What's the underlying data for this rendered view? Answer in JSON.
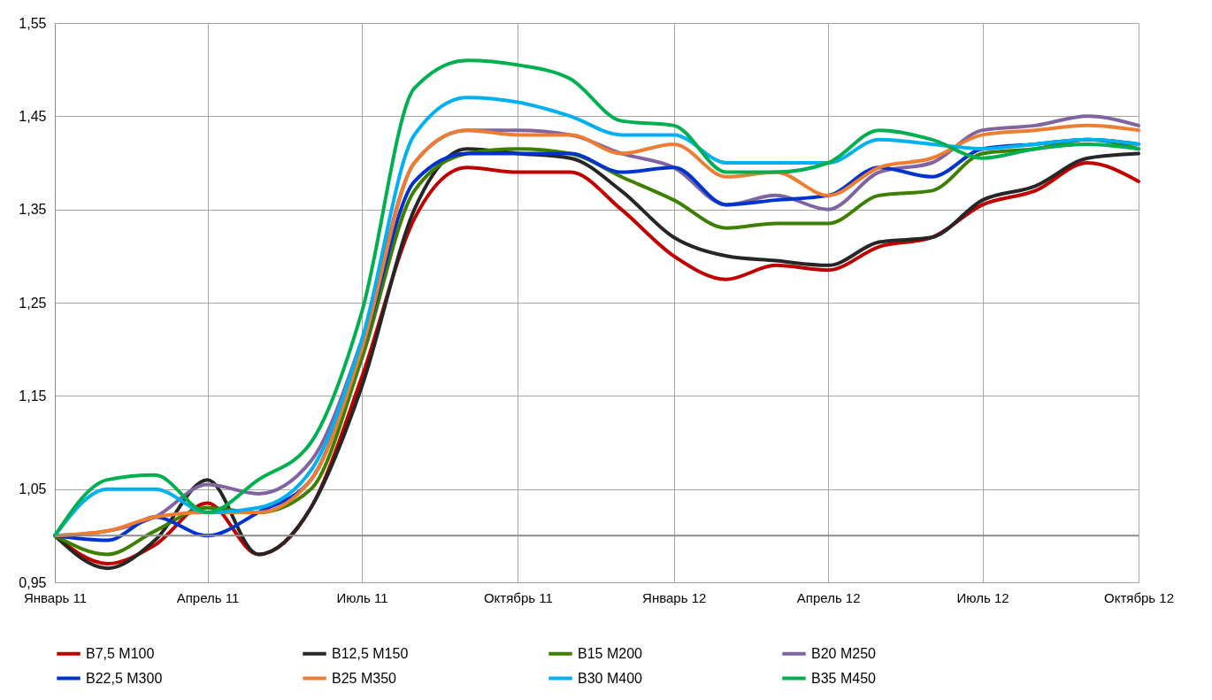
{
  "chart_data": {
    "type": "line",
    "x": [
      "2011-01",
      "2011-02",
      "2011-03",
      "2011-04",
      "2011-05",
      "2011-06",
      "2011-07",
      "2011-08",
      "2011-09",
      "2011-10",
      "2011-11",
      "2011-12",
      "2012-01",
      "2012-02",
      "2012-03",
      "2012-04",
      "2012-05",
      "2012-06",
      "2012-07",
      "2012-08",
      "2012-09",
      "2012-10"
    ],
    "xlim": [
      "2011-01",
      "2012-10"
    ],
    "xticks": [
      {
        "value": "2011-01",
        "label": "Январь 11"
      },
      {
        "value": "2011-04",
        "label": "Апрель 11"
      },
      {
        "value": "2011-07",
        "label": "Июль 11"
      },
      {
        "value": "2011-10",
        "label": "Октябрь 11"
      },
      {
        "value": "2012-01",
        "label": "Январь 12"
      },
      {
        "value": "2012-04",
        "label": "Апрель 12"
      },
      {
        "value": "2012-07",
        "label": "Июль 12"
      },
      {
        "value": "2012-10",
        "label": "Октябрь 12"
      }
    ],
    "ylim": [
      0.95,
      1.55
    ],
    "yticks": [
      {
        "value": 0.95,
        "label": "0,95"
      },
      {
        "value": 1.05,
        "label": "1,05"
      },
      {
        "value": 1.15,
        "label": "1,15"
      },
      {
        "value": 1.25,
        "label": "1,25"
      },
      {
        "value": 1.35,
        "label": "1,35"
      },
      {
        "value": 1.45,
        "label": "1,45"
      },
      {
        "value": 1.55,
        "label": "1,55"
      }
    ],
    "grid": true,
    "legend": "bottom",
    "ref_lines": [
      {
        "axis": "y",
        "value": 1.0,
        "color": "#8c8c8c"
      }
    ],
    "series": [
      {
        "name": "B7,5 M100",
        "color": "#c00000",
        "values": [
          1.0,
          0.97,
          0.99,
          1.035,
          0.98,
          1.03,
          1.17,
          1.34,
          1.395,
          1.39,
          1.39,
          1.35,
          1.3,
          1.275,
          1.29,
          1.285,
          1.31,
          1.32,
          1.355,
          1.37,
          1.4,
          1.38
        ]
      },
      {
        "name": "B12,5 M150",
        "color": "#262626",
        "values": [
          1.0,
          0.965,
          0.995,
          1.06,
          0.98,
          1.03,
          1.16,
          1.35,
          1.415,
          1.41,
          1.405,
          1.37,
          1.32,
          1.3,
          1.295,
          1.29,
          1.315,
          1.32,
          1.36,
          1.375,
          1.405,
          1.41
        ]
      },
      {
        "name": "B15 M200",
        "color": "#3f7f00",
        "values": [
          1.0,
          0.98,
          1.005,
          1.03,
          1.025,
          1.05,
          1.19,
          1.37,
          1.41,
          1.415,
          1.41,
          1.385,
          1.36,
          1.33,
          1.335,
          1.335,
          1.365,
          1.37,
          1.41,
          1.415,
          1.425,
          1.415
        ]
      },
      {
        "name": "B20 M250",
        "color": "#8064a2",
        "values": [
          1.0,
          1.005,
          1.02,
          1.055,
          1.045,
          1.08,
          1.21,
          1.4,
          1.435,
          1.435,
          1.43,
          1.41,
          1.395,
          1.355,
          1.365,
          1.35,
          1.39,
          1.4,
          1.435,
          1.44,
          1.45,
          1.44
        ]
      },
      {
        "name": "B22,5 M300",
        "color": "#0033cc",
        "values": [
          1.0,
          0.995,
          1.02,
          1.0,
          1.025,
          1.06,
          1.2,
          1.38,
          1.41,
          1.41,
          1.41,
          1.39,
          1.395,
          1.355,
          1.36,
          1.365,
          1.395,
          1.385,
          1.415,
          1.42,
          1.425,
          1.42
        ]
      },
      {
        "name": "B25 M350",
        "color": "#ed7d31",
        "values": [
          1.0,
          1.005,
          1.02,
          1.025,
          1.025,
          1.06,
          1.2,
          1.4,
          1.435,
          1.43,
          1.43,
          1.41,
          1.42,
          1.385,
          1.39,
          1.365,
          1.395,
          1.405,
          1.43,
          1.435,
          1.44,
          1.435
        ]
      },
      {
        "name": "B30 M400",
        "color": "#00b0f0",
        "values": [
          1.0,
          1.05,
          1.05,
          1.025,
          1.03,
          1.07,
          1.21,
          1.43,
          1.47,
          1.465,
          1.45,
          1.43,
          1.43,
          1.4,
          1.4,
          1.4,
          1.425,
          1.42,
          1.415,
          1.42,
          1.425,
          1.42
        ]
      },
      {
        "name": "B35 M450",
        "color": "#00b050",
        "values": [
          1.0,
          1.06,
          1.065,
          1.025,
          1.06,
          1.1,
          1.24,
          1.48,
          1.51,
          1.505,
          1.49,
          1.445,
          1.44,
          1.39,
          1.39,
          1.4,
          1.435,
          1.425,
          1.405,
          1.415,
          1.42,
          1.415
        ]
      }
    ]
  }
}
